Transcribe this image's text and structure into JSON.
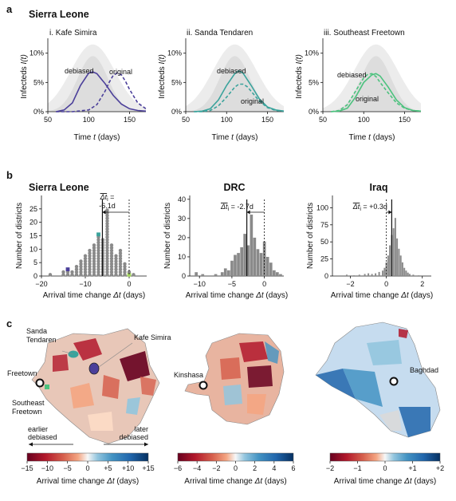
{
  "panel_a": {
    "letter": "a",
    "header": "Sierra Leone",
    "xlabel_prefix": "Time ",
    "xlabel_var": "t",
    "xlabel_suffix": " (days)",
    "ylabel_prefix": "Infecteds ",
    "ylabel_var": "I(t)"
  },
  "panel_b": {
    "letter": "b",
    "xlabel_prefix": "Arrival time change ",
    "xlabel_var": "Δt",
    "xlabel_suffix": " (days)",
    "ylabel": "Number of districts"
  },
  "panel_c": {
    "letter": "c",
    "colorbar_label_prefix": "Arrival time change ",
    "colorbar_label_var": "Δt",
    "colorbar_label_suffix": " (days)",
    "labels_sl": [
      "Sanda",
      "Tendaren",
      "Kafe Simira",
      "Freetown",
      "Southeast",
      "Freetown"
    ],
    "earlier_line1": "earlier",
    "earlier_line2": "debiased",
    "later_line1": "later",
    "later_line2": "debiased",
    "label_drc": "Kinshasa",
    "label_iraq": "Baghdad",
    "colorbars": [
      {
        "ticks": [
          "−15",
          "−10",
          "−5",
          "0",
          "+5",
          "+10",
          "+15"
        ]
      },
      {
        "ticks": [
          "−6",
          "−4",
          "−2",
          "0",
          "2",
          "4",
          "6"
        ]
      },
      {
        "ticks": [
          "−2",
          "−1",
          "0",
          "+1",
          "+2"
        ]
      }
    ]
  },
  "chart_data": [
    {
      "type": "line",
      "title": "i. Kafe Simira",
      "color": "#4b3f9a",
      "xlim": [
        50,
        170
      ],
      "ylim": [
        0,
        0.12
      ],
      "xticks": [
        "50",
        "100",
        "150"
      ],
      "yticks": [
        "0%",
        "5%",
        "10%"
      ],
      "labels": {
        "debiased": "debiased",
        "original": "original"
      },
      "series": [
        {
          "name": "debiased",
          "style": "solid",
          "x": [
            60,
            70,
            80,
            90,
            100,
            105,
            110,
            120,
            130,
            140,
            150,
            160,
            170
          ],
          "y": [
            0,
            0.003,
            0.015,
            0.045,
            0.066,
            0.068,
            0.065,
            0.048,
            0.028,
            0.013,
            0.005,
            0.002,
            0.001
          ]
        },
        {
          "name": "original",
          "style": "dashed",
          "x": [
            60,
            80,
            100,
            110,
            120,
            125,
            130,
            135,
            140,
            145,
            150,
            160,
            170
          ],
          "y": [
            0,
            0,
            0.003,
            0.012,
            0.035,
            0.05,
            0.062,
            0.066,
            0.063,
            0.052,
            0.038,
            0.015,
            0.005
          ]
        }
      ]
    },
    {
      "type": "line",
      "title": "ii. Sanda Tendaren",
      "color": "#3aa39c",
      "xlim": [
        50,
        170
      ],
      "ylim": [
        0,
        0.12
      ],
      "xticks": [
        "50",
        "100",
        "150"
      ],
      "yticks": [
        "0%",
        "5%",
        "10%"
      ],
      "labels": {
        "debiased": "debiased",
        "original": "original"
      },
      "series": [
        {
          "name": "debiased",
          "style": "solid",
          "x": [
            60,
            70,
            80,
            90,
            100,
            110,
            115,
            120,
            130,
            140,
            150,
            160,
            170
          ],
          "y": [
            0,
            0.001,
            0.005,
            0.02,
            0.045,
            0.065,
            0.07,
            0.066,
            0.045,
            0.022,
            0.008,
            0.003,
            0.001
          ]
        },
        {
          "name": "original",
          "style": "dashed",
          "x": [
            60,
            70,
            80,
            90,
            100,
            110,
            115,
            120,
            125,
            130,
            140,
            150,
            160,
            170
          ],
          "y": [
            0,
            0,
            0.002,
            0.01,
            0.025,
            0.042,
            0.047,
            0.047,
            0.043,
            0.035,
            0.018,
            0.007,
            0.002,
            0.001
          ]
        }
      ]
    },
    {
      "type": "line",
      "title": "iii. Southeast Freetown",
      "color": "#4cc27e",
      "xlim": [
        50,
        170
      ],
      "ylim": [
        0,
        0.12
      ],
      "xticks": [
        "50",
        "100",
        "150"
      ],
      "yticks": [
        "0%",
        "5%",
        "10%"
      ],
      "labels": {
        "debiased": "debiased",
        "original": "original"
      },
      "series": [
        {
          "name": "debiased",
          "style": "solid",
          "x": [
            60,
            70,
            80,
            90,
            100,
            110,
            115,
            120,
            130,
            140,
            150,
            160,
            170
          ],
          "y": [
            0,
            0.001,
            0.006,
            0.025,
            0.05,
            0.063,
            0.065,
            0.061,
            0.042,
            0.02,
            0.007,
            0.002,
            0.001
          ]
        },
        {
          "name": "original",
          "style": "dashed",
          "x": [
            60,
            70,
            80,
            90,
            100,
            105,
            110,
            115,
            120,
            130,
            140,
            150,
            160,
            170
          ],
          "y": [
            0,
            0.002,
            0.012,
            0.035,
            0.058,
            0.064,
            0.065,
            0.06,
            0.05,
            0.032,
            0.015,
            0.006,
            0.002,
            0.001
          ]
        }
      ]
    },
    {
      "type": "scatter",
      "title": "Sierra Leone",
      "xlim": [
        -20,
        4
      ],
      "ylim": [
        0,
        30
      ],
      "xticks": [
        "−20",
        "−10",
        "0"
      ],
      "yticks": [
        "0",
        "5",
        "10",
        "15",
        "20",
        "25"
      ],
      "annotation_line1": "Δt̄ =",
      "annotation_var": "Δt",
      "annotation_sub": "i",
      "annotation_line2": "-6.1d",
      "mean": -6.1,
      "columns": [
        {
          "x": -18,
          "count": 1
        },
        {
          "x": -15,
          "count": 2
        },
        {
          "x": -14,
          "count": 3
        },
        {
          "x": -13,
          "count": 2
        },
        {
          "x": -12,
          "count": 4
        },
        {
          "x": -11,
          "count": 6
        },
        {
          "x": -10,
          "count": 8
        },
        {
          "x": -9,
          "count": 10
        },
        {
          "x": -8,
          "count": 12
        },
        {
          "x": -7,
          "count": 16
        },
        {
          "x": -6,
          "count": 14
        },
        {
          "x": -5,
          "count": 25
        },
        {
          "x": -4,
          "count": 12
        },
        {
          "x": -3,
          "count": 8
        },
        {
          "x": -2,
          "count": 10
        },
        {
          "x": -1,
          "count": 5
        },
        {
          "x": 0,
          "count": 2
        },
        {
          "x": 1,
          "count": 1
        }
      ],
      "highlights": [
        {
          "x": -14,
          "level": 3,
          "color": "#4b3f9a"
        },
        {
          "x": -7,
          "level": 16,
          "color": "#3aa39c"
        },
        {
          "x": 0,
          "level": 1,
          "color": "#a4d65e"
        }
      ]
    },
    {
      "type": "bar",
      "title": "DRC",
      "xlim": [
        -11.5,
        3
      ],
      "ylim": [
        0,
        42
      ],
      "xticks": [
        "−10",
        "−5",
        "0"
      ],
      "yticks": [
        "0",
        "10",
        "20",
        "30",
        "40"
      ],
      "annotation_line1": "Δt̄ = -2.7d",
      "annotation_var": "Δt",
      "annotation_sub": "i",
      "annotation_value": " = -2.7d",
      "mean": -2.7,
      "bin_width": 0.5,
      "x": [
        -10.5,
        -9.5,
        -7.5,
        -6.5,
        -6,
        -5.5,
        -5,
        -4.5,
        -4,
        -3.5,
        -3,
        -2.5,
        -2,
        -1.5,
        -1,
        -0.5,
        0,
        0.5,
        1,
        1.5,
        2,
        2.5
      ],
      "values": [
        2,
        1,
        1,
        2,
        4,
        3,
        8,
        11,
        12,
        15,
        22,
        16,
        32,
        20,
        14,
        12,
        18,
        10,
        7,
        3,
        2,
        1
      ]
    },
    {
      "type": "bar",
      "title": "Iraq",
      "xlim": [
        -3,
        2.5
      ],
      "ylim": [
        0,
        118
      ],
      "xticks": [
        "−2",
        "0",
        "2"
      ],
      "yticks": [
        "0",
        "25",
        "50",
        "75",
        "100"
      ],
      "annotation_var": "Δt",
      "annotation_sub": "i",
      "annotation_value": " = +0.3d",
      "mean": 0.3,
      "bin_width": 0.1,
      "x": [
        -2.2,
        -1.8,
        -1.5,
        -1.2,
        -1,
        -0.8,
        -0.6,
        -0.4,
        -0.2,
        -0.1,
        0,
        0.1,
        0.2,
        0.3,
        0.4,
        0.5,
        0.6,
        0.7,
        0.8,
        0.9,
        1,
        1.1,
        1.2,
        1.3,
        1.5,
        1.8
      ],
      "values": [
        2,
        1,
        2,
        3,
        4,
        3,
        4,
        6,
        8,
        12,
        20,
        30,
        45,
        60,
        70,
        85,
        55,
        40,
        30,
        20,
        12,
        8,
        5,
        3,
        2,
        1
      ]
    }
  ]
}
